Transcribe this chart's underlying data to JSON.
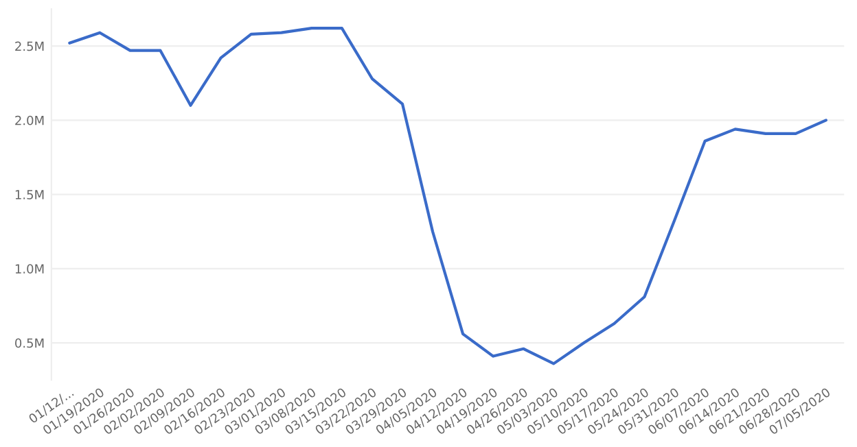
{
  "chart_data": {
    "type": "line",
    "categories": [
      "01/12/...",
      "01/19/2020",
      "01/26/2020",
      "02/02/2020",
      "02/09/2020",
      "02/16/2020",
      "02/23/2020",
      "03/01/2020",
      "03/08/2020",
      "03/15/2020",
      "03/22/2020",
      "03/29/2020",
      "04/05/2020",
      "04/12/2020",
      "04/19/2020",
      "04/26/2020",
      "05/03/2020",
      "05/10/2020",
      "05/17/2020",
      "05/24/2020",
      "05/31/2020",
      "06/07/2020",
      "06/14/2020",
      "06/21/2020",
      "06/28/2020",
      "07/05/2020"
    ],
    "series": [
      {
        "color": "#3a6bc9",
        "values": [
          2520000,
          2590000,
          2470000,
          2470000,
          2100000,
          2420000,
          2580000,
          2590000,
          2620000,
          2620000,
          2280000,
          2110000,
          1250000,
          560000,
          410000,
          460000,
          360000,
          500000,
          630000,
          810000,
          1330000,
          1860000,
          1940000,
          1910000,
          1910000,
          2000000
        ]
      }
    ],
    "ylim": [
      250000,
      2750000
    ],
    "yticks": [
      {
        "value": 500000,
        "label": "0.5M"
      },
      {
        "value": 1000000,
        "label": "1.0M"
      },
      {
        "value": 1500000,
        "label": "1.5M"
      },
      {
        "value": 2000000,
        "label": "2.0M"
      },
      {
        "value": 2500000,
        "label": "2.5M"
      }
    ],
    "grid": "y",
    "line_style": "solid"
  }
}
